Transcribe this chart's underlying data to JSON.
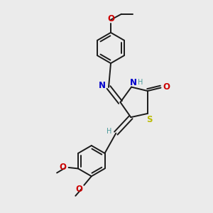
{
  "background_color": "#ebebeb",
  "bond_color": "#1a1a1a",
  "N_color": "#0000cc",
  "O_color": "#cc0000",
  "S_color": "#bbbb00",
  "H_color": "#4a9999",
  "figsize": [
    3.0,
    3.0
  ],
  "dpi": 100,
  "xlim": [
    0,
    10
  ],
  "ylim": [
    0,
    10
  ]
}
